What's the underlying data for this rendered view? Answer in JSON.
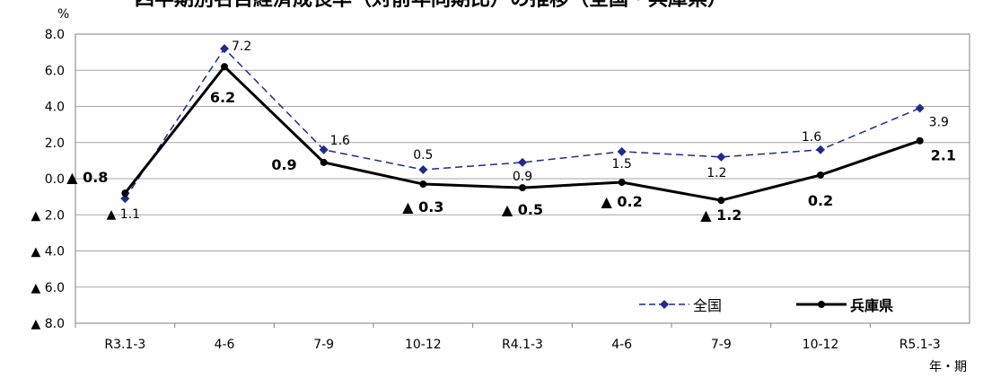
{
  "chart_data": {
    "type": "line",
    "title": "四半期別名目経済成長率（対前年同期比）の推移（全国・兵庫県）",
    "ylabel": "%",
    "xlabel": "年・期",
    "categories": [
      "R3.1-3",
      "4-6",
      "7-9",
      "10-12",
      "R4.1-3",
      "4-6",
      "7-9",
      "10-12",
      "R5.1-3"
    ],
    "ylim": [
      -8.0,
      8.0
    ],
    "yticks": [
      8.0,
      6.0,
      4.0,
      2.0,
      0.0,
      -2.0,
      -4.0,
      -6.0,
      -8.0
    ],
    "ytick_labels": [
      "8.0",
      "6.0",
      "4.0",
      "2.0",
      "0.0",
      "▲ 2.0",
      "▲ 4.0",
      "▲ 6.0",
      "▲ 8.0"
    ],
    "grid": true,
    "legend_position": "bottom-right",
    "series": [
      {
        "name": "全国",
        "style": "dashed",
        "marker": "diamond",
        "color": "#1f2a8c",
        "values": [
          -1.1,
          7.2,
          1.6,
          0.5,
          0.9,
          1.5,
          1.2,
          1.6,
          3.9
        ],
        "labels": [
          "▲ 1.1",
          "7.2",
          "1.6",
          "0.5",
          "0.9",
          "1.5",
          "1.2",
          "1.6",
          "3.9"
        ]
      },
      {
        "name": "兵庫県",
        "style": "solid",
        "marker": "circle",
        "color": "#000000",
        "values": [
          -0.8,
          6.2,
          0.9,
          -0.3,
          -0.5,
          -0.2,
          -1.2,
          0.2,
          2.1
        ],
        "labels": [
          "▲ 0.8",
          "6.2",
          "0.9",
          "▲ 0.3",
          "▲ 0.5",
          "▲ 0.2",
          "▲ 1.2",
          "0.2",
          "2.1"
        ]
      }
    ]
  }
}
